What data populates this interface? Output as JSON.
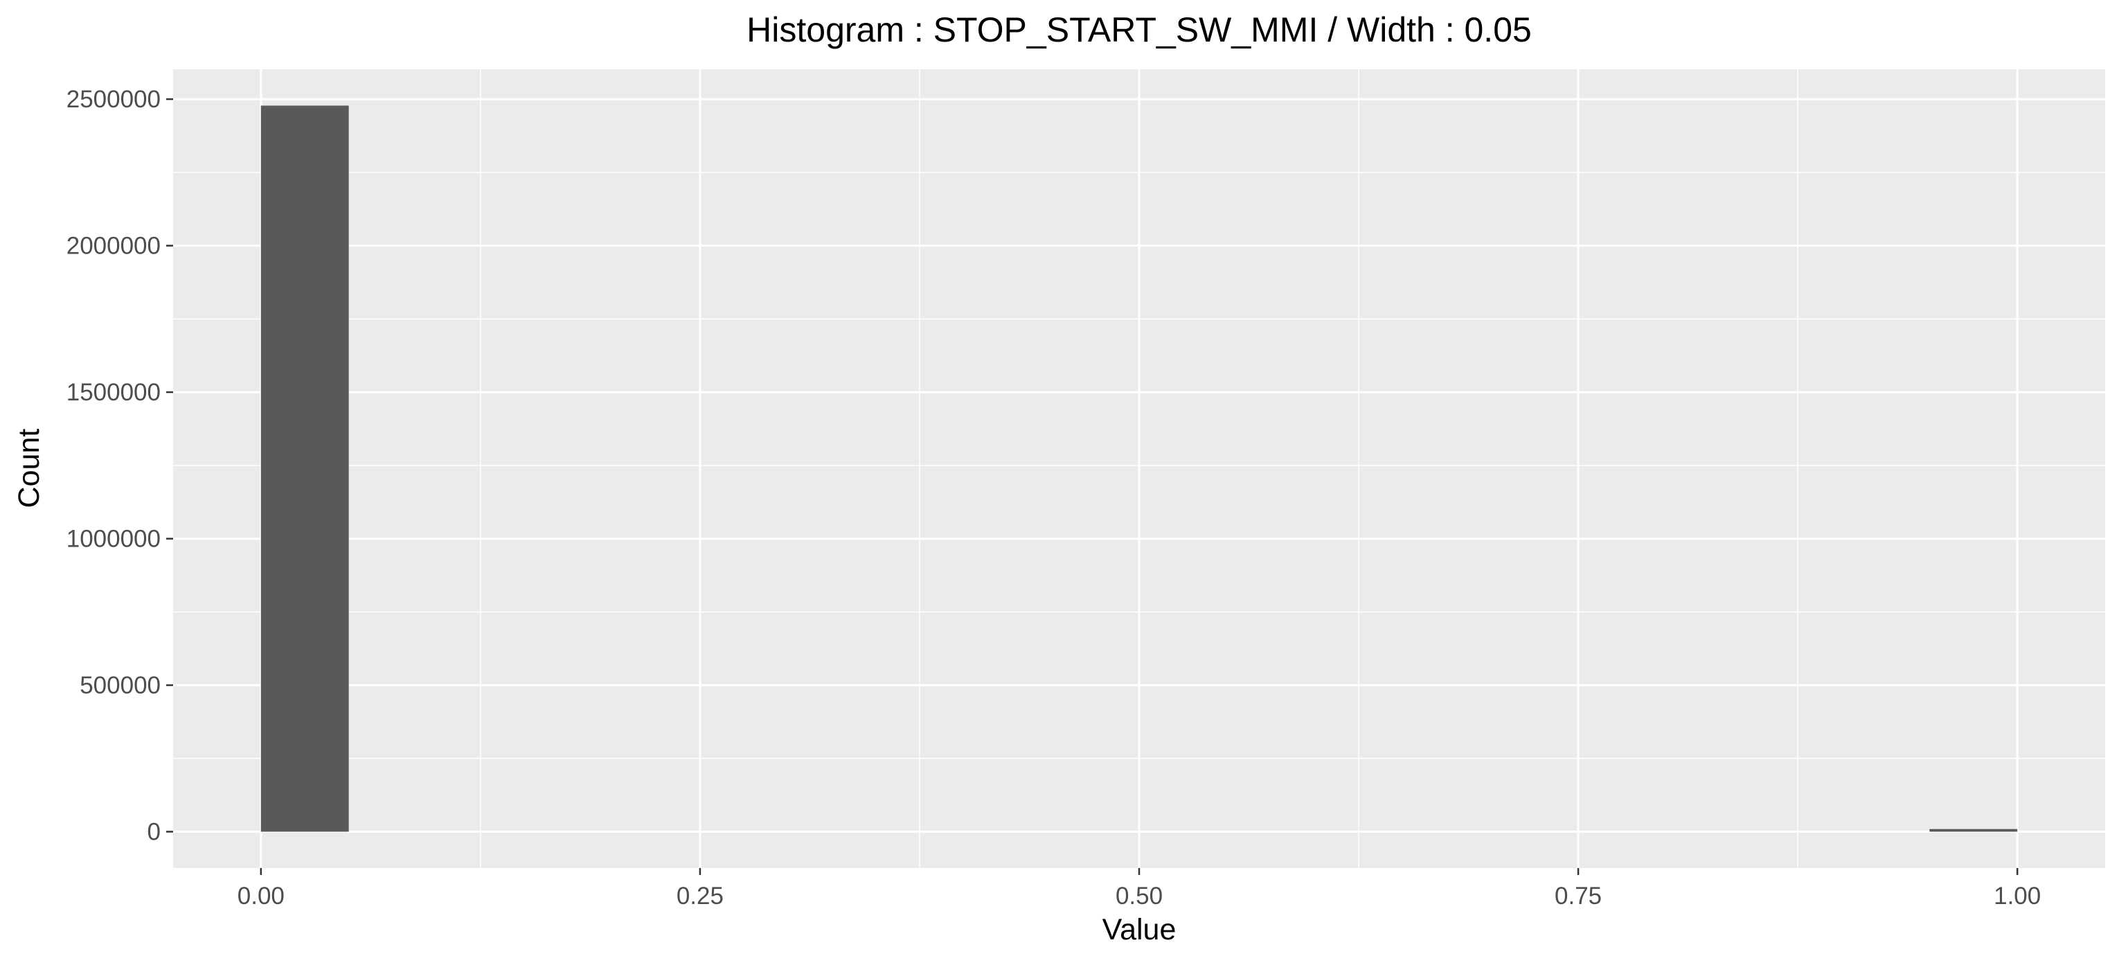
{
  "chart_data": {
    "type": "bar",
    "title": "Histogram : STOP_START_SW_MMI / Width : 0.05",
    "xlabel": "Value",
    "ylabel": "Count",
    "bin_width": 0.05,
    "bins": [
      {
        "x0": 0.0,
        "x1": 0.05,
        "count": 2478000
      },
      {
        "x0": 0.95,
        "x1": 1.0,
        "count": 9000
      }
    ],
    "xlim": [
      -0.05,
      1.05
    ],
    "ylim": [
      -124000,
      2602000
    ],
    "x_ticks": [
      0.0,
      0.25,
      0.5,
      0.75,
      1.0
    ],
    "x_tick_labels": [
      "0.00",
      "0.25",
      "0.50",
      "0.75",
      "1.00"
    ],
    "y_ticks": [
      0,
      500000,
      1000000,
      1500000,
      2000000,
      2500000
    ],
    "y_tick_labels": [
      "0",
      "500000",
      "1000000",
      "1500000",
      "2000000",
      "2500000"
    ],
    "grid": true,
    "colors": {
      "bar_fill": "#595959",
      "panel_background": "#ebebeb",
      "grid_line": "#ffffff"
    }
  }
}
